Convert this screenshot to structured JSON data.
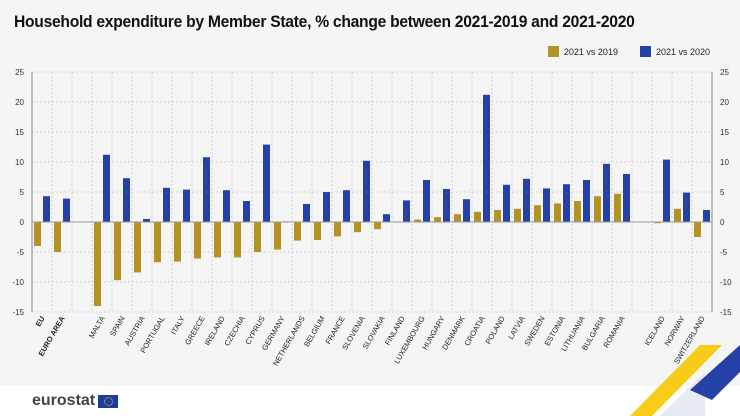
{
  "chart_data": {
    "type": "bar",
    "title": "Household expenditure by Member State, % change between 2021-2019 and 2021-2020",
    "categories": [
      "EU",
      "EURO AREA",
      "",
      "MALTA",
      "SPAIN",
      "AUSTRIA",
      "PORTUGAL",
      "ITALY",
      "GREECE",
      "IRELAND",
      "CZECHIA",
      "CYPRUS",
      "GERMANY",
      "NETHERLANDS",
      "BELGIUM",
      "FRANCE",
      "SLOVENIA",
      "SLOVAKIA",
      "FINLAND",
      "LUXEMBOURG",
      "HUNGARY",
      "DENMARK",
      "CROATIA",
      "POLAND",
      "LATVIA",
      "SWEDEN",
      "ESTONIA",
      "LITHUANIA",
      "BULGARIA",
      "ROMANIA",
      "",
      "ICELAND",
      "NORWAY",
      "SWITZERLAND"
    ],
    "series": [
      {
        "name": "2021 vs 2019",
        "color": "#b39324",
        "values": [
          -4.0,
          -5.0,
          null,
          -14.0,
          -9.7,
          -8.4,
          -6.7,
          -6.6,
          -6.1,
          -5.9,
          -5.9,
          -5.0,
          -4.6,
          -3.1,
          -3.0,
          -2.4,
          -1.7,
          -1.2,
          -0.1,
          0.4,
          0.8,
          1.3,
          1.7,
          2.0,
          2.2,
          2.8,
          3.1,
          3.5,
          4.3,
          4.7,
          null,
          -0.2,
          2.2,
          -2.5
        ]
      },
      {
        "name": "2021 vs 2020",
        "color": "#2541a8",
        "values": [
          4.3,
          3.9,
          null,
          11.2,
          7.3,
          0.5,
          5.7,
          5.4,
          10.8,
          5.3,
          3.5,
          12.9,
          0.1,
          3.0,
          5.0,
          5.3,
          10.2,
          1.3,
          3.6,
          7.0,
          5.5,
          3.8,
          21.2,
          6.2,
          7.2,
          5.6,
          6.3,
          7.0,
          9.7,
          8.0,
          null,
          10.4,
          4.9,
          2.0
        ]
      }
    ],
    "ylim": [
      -15,
      25
    ],
    "yticks": [
      -15,
      -10,
      -5,
      0,
      5,
      10,
      15,
      20,
      25
    ],
    "bold_categories": [
      "EU",
      "EURO AREA"
    ],
    "grid": true,
    "legend_position": "top-right"
  },
  "logo": {
    "text": "eurostat"
  }
}
